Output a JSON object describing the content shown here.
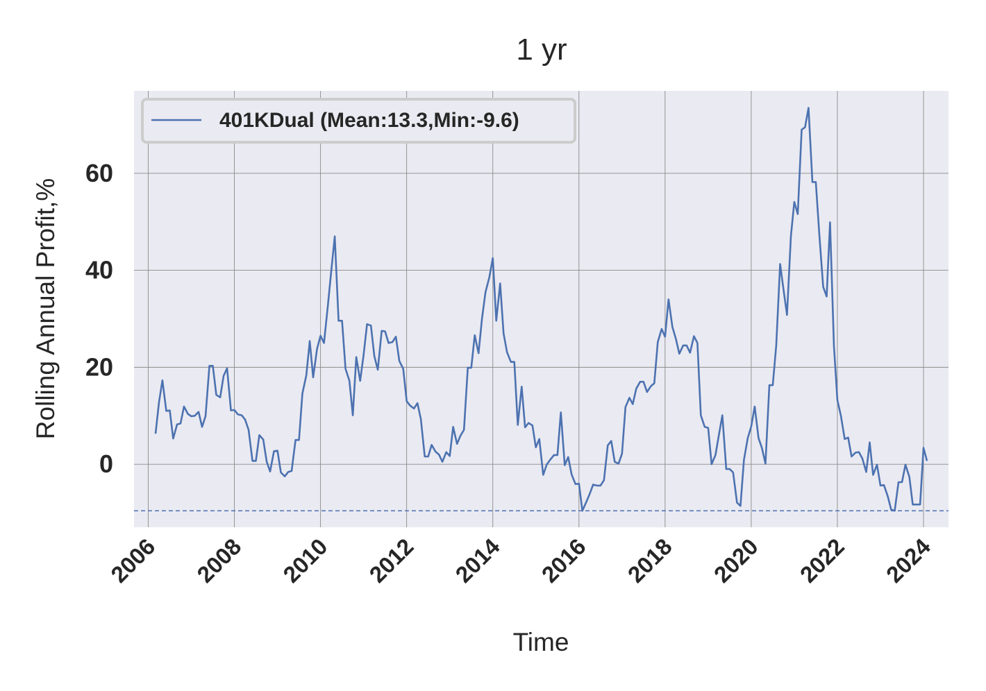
{
  "chart_data": {
    "type": "line",
    "title": "1 yr",
    "xlabel": "Time",
    "ylabel": "Rolling Annual Profit,%",
    "xlim": [
      2005.67,
      2024.58
    ],
    "ylim": [
      -13,
      77
    ],
    "x_ticks": [
      "2006",
      "2008",
      "2010",
      "2012",
      "2014",
      "2016",
      "2018",
      "2020",
      "2022",
      "2024"
    ],
    "y_ticks": [
      "0",
      "20",
      "40",
      "60"
    ],
    "grid": true,
    "legend_position": "top-left",
    "reference_line": {
      "y": -9.6,
      "style": "dashed"
    },
    "series": [
      {
        "name": "401KDual (Mean:13.3,Min:-9.6)",
        "color": "#4c72b0",
        "x": [
          2006.17,
          2006.25,
          2006.33,
          2006.42,
          2006.5,
          2006.58,
          2006.67,
          2006.75,
          2006.83,
          2006.92,
          2007.0,
          2007.08,
          2007.17,
          2007.25,
          2007.33,
          2007.42,
          2007.5,
          2007.58,
          2007.67,
          2007.75,
          2007.83,
          2007.92,
          2008.0,
          2008.08,
          2008.17,
          2008.25,
          2008.33,
          2008.42,
          2008.5,
          2008.58,
          2008.67,
          2008.75,
          2008.83,
          2008.92,
          2009.0,
          2009.08,
          2009.17,
          2009.25,
          2009.33,
          2009.42,
          2009.5,
          2009.58,
          2009.67,
          2009.75,
          2009.83,
          2009.92,
          2010.0,
          2010.08,
          2010.17,
          2010.25,
          2010.33,
          2010.42,
          2010.5,
          2010.58,
          2010.67,
          2010.75,
          2010.83,
          2010.92,
          2011.0,
          2011.08,
          2011.17,
          2011.25,
          2011.33,
          2011.42,
          2011.5,
          2011.58,
          2011.67,
          2011.75,
          2011.83,
          2011.92,
          2012.0,
          2012.08,
          2012.17,
          2012.25,
          2012.33,
          2012.42,
          2012.5,
          2012.58,
          2012.67,
          2012.75,
          2012.83,
          2012.92,
          2013.0,
          2013.08,
          2013.17,
          2013.25,
          2013.33,
          2013.42,
          2013.5,
          2013.58,
          2013.67,
          2013.75,
          2013.83,
          2013.92,
          2014.0,
          2014.08,
          2014.17,
          2014.25,
          2014.33,
          2014.42,
          2014.5,
          2014.58,
          2014.67,
          2014.75,
          2014.83,
          2014.92,
          2015.0,
          2015.08,
          2015.17,
          2015.25,
          2015.33,
          2015.42,
          2015.5,
          2015.58,
          2015.67,
          2015.75,
          2015.83,
          2015.92,
          2016.0,
          2016.08,
          2016.17,
          2016.25,
          2016.33,
          2016.42,
          2016.5,
          2016.58,
          2016.67,
          2016.75,
          2016.83,
          2016.92,
          2017.0,
          2017.08,
          2017.17,
          2017.25,
          2017.33,
          2017.42,
          2017.5,
          2017.58,
          2017.67,
          2017.75,
          2017.83,
          2017.92,
          2018.0,
          2018.08,
          2018.17,
          2018.25,
          2018.33,
          2018.42,
          2018.5,
          2018.58,
          2018.67,
          2018.75,
          2018.83,
          2018.92,
          2019.0,
          2019.08,
          2019.17,
          2019.25,
          2019.33,
          2019.42,
          2019.5,
          2019.58,
          2019.67,
          2019.75,
          2019.83,
          2019.92,
          2020.0,
          2020.08,
          2020.17,
          2020.25,
          2020.33,
          2020.42,
          2020.5,
          2020.58,
          2020.67,
          2020.75,
          2020.83,
          2020.92,
          2021.0,
          2021.08,
          2021.17,
          2021.25,
          2021.33,
          2021.42,
          2021.5,
          2021.58,
          2021.67,
          2021.75,
          2021.83,
          2021.92,
          2022.0,
          2022.08,
          2022.17,
          2022.25,
          2022.33,
          2022.42,
          2022.5,
          2022.58,
          2022.67,
          2022.75,
          2022.83,
          2022.92,
          2023.0,
          2023.08,
          2023.17,
          2023.25,
          2023.33,
          2023.42,
          2023.5,
          2023.58,
          2023.67,
          2023.75,
          2023.83,
          2023.92,
          2024.0,
          2024.08
        ],
        "y": [
          6.3,
          12.8,
          17.3,
          11.0,
          11.1,
          5.3,
          8.2,
          8.4,
          11.9,
          10.4,
          9.9,
          10.0,
          10.8,
          7.7,
          9.9,
          20.3,
          20.3,
          14.3,
          13.8,
          18.2,
          19.8,
          11.1,
          11.2,
          10.3,
          10.1,
          9.2,
          7.1,
          0.7,
          0.7,
          6.0,
          5.1,
          0.5,
          -1.5,
          2.7,
          2.8,
          -1.7,
          -2.5,
          -1.6,
          -1.4,
          5.0,
          5.0,
          14.6,
          18.3,
          25.4,
          17.9,
          23.8,
          26.5,
          25.0,
          32.6,
          39.9,
          47.0,
          29.6,
          29.6,
          19.7,
          17.2,
          10.1,
          22.1,
          17.2,
          22.5,
          28.9,
          28.6,
          22.3,
          19.5,
          27.5,
          27.4,
          25.0,
          25.2,
          26.3,
          21.3,
          19.7,
          13.0,
          12.1,
          11.5,
          12.6,
          9.3,
          1.6,
          1.6,
          4.0,
          2.6,
          2.0,
          0.5,
          2.5,
          1.7,
          7.7,
          4.2,
          5.9,
          7.1,
          19.9,
          19.9,
          26.6,
          22.9,
          30.1,
          35.5,
          38.6,
          42.5,
          29.6,
          37.3,
          27.0,
          23.1,
          21.1,
          21.1,
          8.1,
          16.0,
          7.6,
          8.5,
          8.0,
          3.5,
          5.2,
          -2.2,
          -0.1,
          0.9,
          1.9,
          1.9,
          10.7,
          -0.2,
          1.5,
          -2.1,
          -4.1,
          -4.0,
          -9.6,
          -7.8,
          -6.1,
          -4.2,
          -4.4,
          -4.4,
          -3.3,
          3.9,
          4.8,
          0.5,
          0.1,
          2.2,
          11.8,
          13.7,
          12.4,
          15.6,
          17.0,
          17.0,
          14.9,
          16.1,
          16.7,
          25.2,
          27.9,
          26.3,
          34.0,
          28.3,
          25.9,
          22.8,
          24.5,
          24.5,
          23.0,
          26.4,
          25.0,
          10.1,
          7.7,
          7.5,
          0.0,
          1.9,
          6.1,
          10.1,
          -1.0,
          -1.0,
          -1.7,
          -7.9,
          -8.6,
          0.9,
          5.4,
          7.8,
          11.9,
          5.4,
          3.3,
          0.1,
          16.3,
          16.3,
          24.5,
          41.3,
          36.0,
          30.8,
          47.0,
          54.1,
          51.6,
          69.0,
          69.5,
          73.5,
          58.2,
          58.2,
          47.5,
          36.6,
          34.6,
          49.9,
          24.4,
          13.2,
          10.1,
          5.2,
          5.5,
          1.6,
          2.4,
          2.5,
          1.2,
          -1.6,
          4.5,
          -2.2,
          -0.1,
          -4.4,
          -4.3,
          -6.6,
          -9.4,
          -9.6,
          -3.7,
          -3.7,
          -0.1,
          -2.6,
          -8.3,
          -8.3,
          -8.3,
          3.4,
          0.7
        ]
      }
    ]
  }
}
